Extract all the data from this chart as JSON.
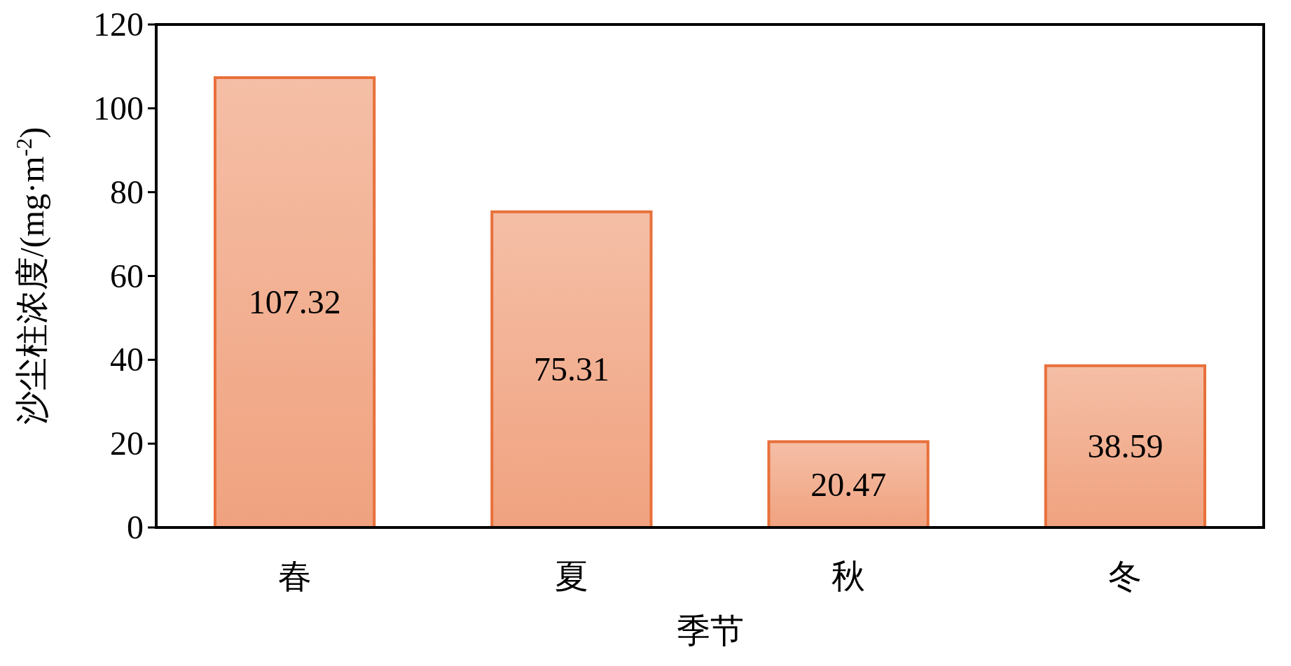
{
  "chart_data": {
    "type": "bar",
    "xlabel": "季节",
    "ylabel": "沙尘柱浓度/(mg·m$^{-2}$)",
    "categories": [
      "春",
      "夏",
      "秋",
      "冬"
    ],
    "values": [
      107.32,
      75.31,
      20.47,
      38.59
    ],
    "color": "#e8703a",
    "ylim": [
      0,
      120
    ],
    "yticks": [
      0,
      20,
      40,
      60,
      80,
      100,
      120
    ],
    "data_labels": true
  }
}
